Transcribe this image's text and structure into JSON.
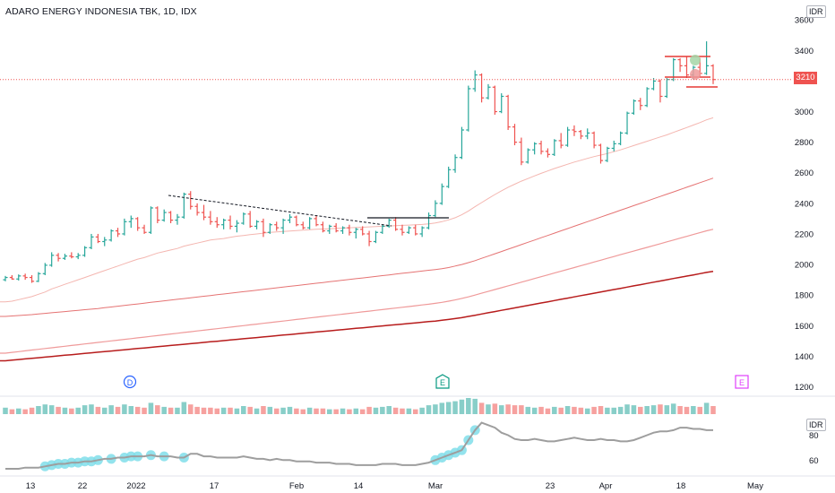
{
  "header": {
    "title": "ADARO ENERGY INDONESIA TBK, 1D, IDX",
    "currency_main": "IDR",
    "currency_indicator": "IDR"
  },
  "last_price": "3210",
  "colors": {
    "up": "#26a69a",
    "down": "#ef5350",
    "ma_fast": "#f4b6b0",
    "ma_mid": "#e57373",
    "ma_slow": "#ef9a9a",
    "ma_long": "#b71c1c",
    "indicator": "#9e9e9e",
    "highlight": "#80deea"
  },
  "events": [
    {
      "label": "D",
      "color": "#2962ff",
      "date": "2022-01-03"
    },
    {
      "label": "E",
      "color": "#089981",
      "date": "2022-03-01"
    },
    {
      "label": "E",
      "color": "#e040fb",
      "date": "2022-04-28"
    }
  ],
  "chart_data": {
    "type": "candlestick",
    "title": "ADARO ENERGY INDONESIA TBK, 1D, IDX",
    "y_axis": {
      "ticks": [
        1200,
        1400,
        1600,
        1800,
        2000,
        2200,
        2400,
        2600,
        2800,
        3000,
        3200,
        3400,
        3600
      ],
      "range": [
        1150,
        3660
      ]
    },
    "x_axis": {
      "ticks": [
        "13",
        "22",
        "2022",
        "17",
        "Feb",
        "14",
        "Mar",
        "23",
        "Apr",
        "18",
        "May"
      ]
    },
    "ohlc": [
      [
        1900,
        1925,
        1890,
        1915
      ],
      [
        1915,
        1930,
        1900,
        1905
      ],
      [
        1905,
        1935,
        1895,
        1925
      ],
      [
        1925,
        1940,
        1900,
        1915
      ],
      [
        1915,
        1930,
        1880,
        1890
      ],
      [
        1890,
        1950,
        1885,
        1940
      ],
      [
        1940,
        2010,
        1930,
        1995
      ],
      [
        1995,
        2080,
        1985,
        2060
      ],
      [
        2060,
        2075,
        2020,
        2040
      ],
      [
        2040,
        2070,
        2030,
        2055
      ],
      [
        2055,
        2080,
        2040,
        2050
      ],
      [
        2050,
        2075,
        2035,
        2060
      ],
      [
        2060,
        2120,
        2050,
        2110
      ],
      [
        2110,
        2200,
        2100,
        2180
      ],
      [
        2180,
        2200,
        2140,
        2150
      ],
      [
        2150,
        2180,
        2120,
        2160
      ],
      [
        2160,
        2230,
        2150,
        2220
      ],
      [
        2220,
        2240,
        2180,
        2200
      ],
      [
        2200,
        2300,
        2190,
        2280
      ],
      [
        2280,
        2320,
        2240,
        2300
      ],
      [
        2300,
        2310,
        2220,
        2240
      ],
      [
        2240,
        2260,
        2200,
        2210
      ],
      [
        2210,
        2380,
        2200,
        2370
      ],
      [
        2370,
        2380,
        2270,
        2290
      ],
      [
        2290,
        2360,
        2280,
        2340
      ],
      [
        2340,
        2350,
        2270,
        2290
      ],
      [
        2290,
        2330,
        2260,
        2310
      ],
      [
        2310,
        2470,
        2300,
        2460
      ],
      [
        2460,
        2480,
        2360,
        2380
      ],
      [
        2380,
        2400,
        2320,
        2340
      ],
      [
        2340,
        2390,
        2290,
        2310
      ],
      [
        2310,
        2350,
        2260,
        2280
      ],
      [
        2280,
        2310,
        2240,
        2260
      ],
      [
        2260,
        2300,
        2230,
        2290
      ],
      [
        2290,
        2320,
        2230,
        2250
      ],
      [
        2250,
        2290,
        2210,
        2270
      ],
      [
        2270,
        2340,
        2260,
        2330
      ],
      [
        2330,
        2350,
        2240,
        2250
      ],
      [
        2250,
        2290,
        2230,
        2280
      ],
      [
        2280,
        2300,
        2180,
        2210
      ],
      [
        2210,
        2270,
        2200,
        2260
      ],
      [
        2260,
        2280,
        2220,
        2240
      ],
      [
        2240,
        2300,
        2200,
        2290
      ],
      [
        2290,
        2330,
        2270,
        2310
      ],
      [
        2310,
        2320,
        2250,
        2260
      ],
      [
        2260,
        2280,
        2230,
        2240
      ],
      [
        2240,
        2310,
        2230,
        2300
      ],
      [
        2300,
        2320,
        2250,
        2260
      ],
      [
        2260,
        2280,
        2210,
        2220
      ],
      [
        2220,
        2260,
        2200,
        2250
      ],
      [
        2250,
        2270,
        2210,
        2220
      ],
      [
        2220,
        2250,
        2200,
        2240
      ],
      [
        2240,
        2260,
        2190,
        2210
      ],
      [
        2210,
        2240,
        2170,
        2230
      ],
      [
        2230,
        2250,
        2190,
        2200
      ],
      [
        2200,
        2220,
        2120,
        2150
      ],
      [
        2150,
        2220,
        2140,
        2210
      ],
      [
        2210,
        2260,
        2200,
        2250
      ],
      [
        2250,
        2300,
        2240,
        2290
      ],
      [
        2290,
        2310,
        2220,
        2230
      ],
      [
        2230,
        2260,
        2190,
        2210
      ],
      [
        2210,
        2250,
        2200,
        2240
      ],
      [
        2240,
        2260,
        2190,
        2200
      ],
      [
        2200,
        2250,
        2180,
        2240
      ],
      [
        2240,
        2340,
        2230,
        2320
      ],
      [
        2320,
        2420,
        2310,
        2400
      ],
      [
        2400,
        2530,
        2390,
        2510
      ],
      [
        2510,
        2640,
        2500,
        2620
      ],
      [
        2620,
        2720,
        2600,
        2700
      ],
      [
        2700,
        2900,
        2690,
        2880
      ],
      [
        2880,
        3170,
        2870,
        3150
      ],
      [
        3150,
        3270,
        3130,
        3240
      ],
      [
        3240,
        3250,
        3060,
        3090
      ],
      [
        3090,
        3180,
        3080,
        3160
      ],
      [
        3160,
        3170,
        2980,
        3000
      ],
      [
        3000,
        3120,
        2990,
        3100
      ],
      [
        3100,
        3110,
        2880,
        2900
      ],
      [
        2900,
        2920,
        2780,
        2800
      ],
      [
        2800,
        2830,
        2650,
        2670
      ],
      [
        2670,
        2760,
        2660,
        2750
      ],
      [
        2750,
        2800,
        2720,
        2790
      ],
      [
        2790,
        2810,
        2720,
        2740
      ],
      [
        2740,
        2760,
        2700,
        2720
      ],
      [
        2720,
        2820,
        2710,
        2810
      ],
      [
        2810,
        2860,
        2760,
        2780
      ],
      [
        2780,
        2900,
        2770,
        2880
      ],
      [
        2880,
        2910,
        2840,
        2870
      ],
      [
        2870,
        2880,
        2820,
        2840
      ],
      [
        2840,
        2890,
        2820,
        2860
      ],
      [
        2860,
        2870,
        2760,
        2780
      ],
      [
        2780,
        2790,
        2660,
        2680
      ],
      [
        2680,
        2770,
        2670,
        2760
      ],
      [
        2760,
        2810,
        2740,
        2790
      ],
      [
        2790,
        2870,
        2780,
        2860
      ],
      [
        2860,
        3000,
        2850,
        2990
      ],
      [
        2990,
        3080,
        2980,
        3070
      ],
      [
        3070,
        3090,
        3010,
        3040
      ],
      [
        3040,
        3160,
        3030,
        3150
      ],
      [
        3150,
        3220,
        3140,
        3200
      ],
      [
        3200,
        3210,
        3060,
        3100
      ],
      [
        3100,
        3220,
        3090,
        3210
      ],
      [
        3210,
        3350,
        3200,
        3340
      ],
      [
        3340,
        3350,
        3260,
        3300
      ],
      [
        3300,
        3360,
        3220,
        3240
      ],
      [
        3240,
        3300,
        3210,
        3290
      ],
      [
        3290,
        3350,
        3230,
        3250
      ],
      [
        3250,
        3460,
        3240,
        3300
      ],
      [
        3300,
        3310,
        3180,
        3210
      ]
    ],
    "volume": [
      0.4,
      0.3,
      0.35,
      0.3,
      0.4,
      0.5,
      0.6,
      0.55,
      0.45,
      0.4,
      0.35,
      0.4,
      0.55,
      0.6,
      0.45,
      0.4,
      0.55,
      0.45,
      0.6,
      0.5,
      0.45,
      0.4,
      0.7,
      0.55,
      0.45,
      0.4,
      0.4,
      0.75,
      0.6,
      0.45,
      0.4,
      0.4,
      0.35,
      0.4,
      0.4,
      0.35,
      0.5,
      0.45,
      0.35,
      0.5,
      0.45,
      0.35,
      0.4,
      0.45,
      0.35,
      0.3,
      0.4,
      0.35,
      0.35,
      0.3,
      0.3,
      0.35,
      0.3,
      0.35,
      0.3,
      0.45,
      0.4,
      0.45,
      0.5,
      0.4,
      0.35,
      0.35,
      0.3,
      0.4,
      0.55,
      0.6,
      0.7,
      0.75,
      0.8,
      0.9,
      1.0,
      0.95,
      0.7,
      0.6,
      0.65,
      0.55,
      0.6,
      0.55,
      0.55,
      0.45,
      0.4,
      0.45,
      0.35,
      0.45,
      0.4,
      0.5,
      0.45,
      0.4,
      0.35,
      0.45,
      0.5,
      0.4,
      0.4,
      0.45,
      0.6,
      0.55,
      0.45,
      0.5,
      0.55,
      0.6,
      0.55,
      0.65,
      0.5,
      0.45,
      0.5,
      0.45,
      0.7,
      0.5
    ],
    "moving_averages": [
      {
        "values": [
          1755,
          1760,
          1770,
          1780,
          1790,
          1805,
          1820,
          1840,
          1855,
          1870,
          1885,
          1900,
          1915,
          1930,
          1945,
          1960,
          1975,
          1990,
          2005,
          2020,
          2035,
          2045,
          2060,
          2075,
          2085,
          2095,
          2105,
          2120,
          2130,
          2140,
          2150,
          2160,
          2165,
          2170,
          2178,
          2185,
          2190,
          2195,
          2200,
          2205,
          2210,
          2213,
          2216,
          2219,
          2222,
          2225,
          2228,
          2230,
          2232,
          2234,
          2236,
          2238,
          2240,
          2242,
          2244,
          2246,
          2248,
          2250,
          2252,
          2254,
          2256,
          2258,
          2260,
          2262,
          2266,
          2272,
          2280,
          2292,
          2306,
          2325,
          2350,
          2378,
          2405,
          2432,
          2458,
          2482,
          2505,
          2525,
          2545,
          2562,
          2580,
          2596,
          2612,
          2628,
          2642,
          2656,
          2670,
          2682,
          2694,
          2706,
          2716,
          2726,
          2738,
          2750,
          2764,
          2778,
          2792,
          2806,
          2820,
          2834,
          2848,
          2864,
          2880,
          2896,
          2912,
          2928,
          2946,
          2960
        ]
      },
      {
        "values": [
          1660,
          1663,
          1666,
          1669,
          1672,
          1676,
          1680,
          1684,
          1688,
          1692,
          1696,
          1700,
          1704,
          1708,
          1712,
          1717,
          1722,
          1727,
          1732,
          1737,
          1742,
          1747,
          1752,
          1757,
          1762,
          1767,
          1772,
          1777,
          1782,
          1787,
          1792,
          1797,
          1802,
          1807,
          1812,
          1817,
          1822,
          1827,
          1832,
          1837,
          1842,
          1847,
          1852,
          1857,
          1862,
          1867,
          1872,
          1877,
          1882,
          1887,
          1892,
          1897,
          1902,
          1907,
          1912,
          1917,
          1922,
          1927,
          1932,
          1937,
          1942,
          1947,
          1952,
          1957,
          1962,
          1967,
          1972,
          1980,
          1990,
          2000,
          2012,
          2025,
          2040,
          2055,
          2070,
          2085,
          2100,
          2115,
          2130,
          2145,
          2160,
          2175,
          2190,
          2205,
          2220,
          2235,
          2250,
          2265,
          2280,
          2295,
          2310,
          2325,
          2340,
          2355,
          2370,
          2385,
          2400,
          2415,
          2430,
          2445,
          2460,
          2475,
          2490,
          2505,
          2520,
          2535,
          2550,
          2565
        ]
      },
      {
        "values": [
          1420,
          1425,
          1430,
          1435,
          1440,
          1445,
          1450,
          1455,
          1460,
          1465,
          1470,
          1475,
          1480,
          1485,
          1490,
          1495,
          1500,
          1505,
          1510,
          1515,
          1520,
          1525,
          1530,
          1535,
          1540,
          1545,
          1550,
          1555,
          1560,
          1565,
          1570,
          1575,
          1580,
          1585,
          1590,
          1595,
          1600,
          1605,
          1610,
          1615,
          1620,
          1625,
          1630,
          1635,
          1640,
          1645,
          1650,
          1655,
          1660,
          1665,
          1670,
          1675,
          1680,
          1685,
          1690,
          1695,
          1700,
          1705,
          1710,
          1715,
          1720,
          1725,
          1730,
          1735,
          1740,
          1746,
          1752,
          1760,
          1768,
          1778,
          1788,
          1800,
          1812,
          1824,
          1836,
          1848,
          1860,
          1872,
          1884,
          1896,
          1908,
          1920,
          1932,
          1944,
          1956,
          1968,
          1980,
          1992,
          2004,
          2016,
          2028,
          2040,
          2052,
          2064,
          2076,
          2088,
          2100,
          2112,
          2124,
          2136,
          2148,
          2160,
          2172,
          2184,
          2196,
          2208,
          2220,
          2230
        ]
      },
      {
        "values": [
          1370,
          1374,
          1378,
          1382,
          1386,
          1390,
          1394,
          1398,
          1402,
          1406,
          1410,
          1414,
          1418,
          1422,
          1426,
          1430,
          1434,
          1438,
          1442,
          1446,
          1450,
          1454,
          1458,
          1462,
          1466,
          1470,
          1474,
          1478,
          1482,
          1486,
          1490,
          1494,
          1498,
          1502,
          1506,
          1510,
          1514,
          1518,
          1522,
          1526,
          1530,
          1534,
          1538,
          1542,
          1546,
          1550,
          1554,
          1558,
          1562,
          1566,
          1570,
          1574,
          1578,
          1582,
          1586,
          1590,
          1594,
          1598,
          1602,
          1606,
          1610,
          1614,
          1618,
          1622,
          1626,
          1630,
          1635,
          1640,
          1646,
          1652,
          1660,
          1668,
          1676,
          1684,
          1692,
          1700,
          1708,
          1716,
          1724,
          1732,
          1740,
          1748,
          1756,
          1764,
          1772,
          1780,
          1788,
          1796,
          1804,
          1812,
          1820,
          1828,
          1836,
          1844,
          1852,
          1860,
          1868,
          1876,
          1884,
          1892,
          1900,
          1908,
          1916,
          1924,
          1932,
          1940,
          1948,
          1955
        ]
      }
    ],
    "indicator": {
      "ticks": [
        60,
        80
      ],
      "range": [
        48,
        94
      ],
      "values": [
        53,
        53,
        53,
        54,
        54,
        54,
        55,
        56,
        57,
        57,
        58,
        58,
        59,
        59,
        60,
        61,
        61,
        62,
        62,
        63,
        63,
        63,
        64,
        63,
        63,
        63,
        62,
        62,
        65,
        65,
        63,
        63,
        62,
        62,
        62,
        62,
        63,
        62,
        61,
        61,
        60,
        61,
        60,
        60,
        59,
        59,
        59,
        58,
        58,
        58,
        57,
        57,
        57,
        56,
        56,
        56,
        56,
        57,
        57,
        57,
        56,
        56,
        56,
        57,
        58,
        60,
        62,
        64,
        66,
        68,
        76,
        84,
        90,
        88,
        86,
        82,
        80,
        77,
        76,
        76,
        77,
        76,
        75,
        75,
        76,
        77,
        78,
        77,
        76,
        76,
        77,
        76,
        76,
        75,
        75,
        76,
        78,
        80,
        82,
        83,
        83,
        84,
        86,
        86,
        85,
        85,
        84,
        84
      ],
      "highlighted": [
        6,
        7,
        8,
        9,
        10,
        11,
        12,
        13,
        14,
        16,
        18,
        19,
        20,
        22,
        24,
        27,
        65,
        66,
        67,
        68,
        69,
        70,
        71
      ]
    }
  }
}
